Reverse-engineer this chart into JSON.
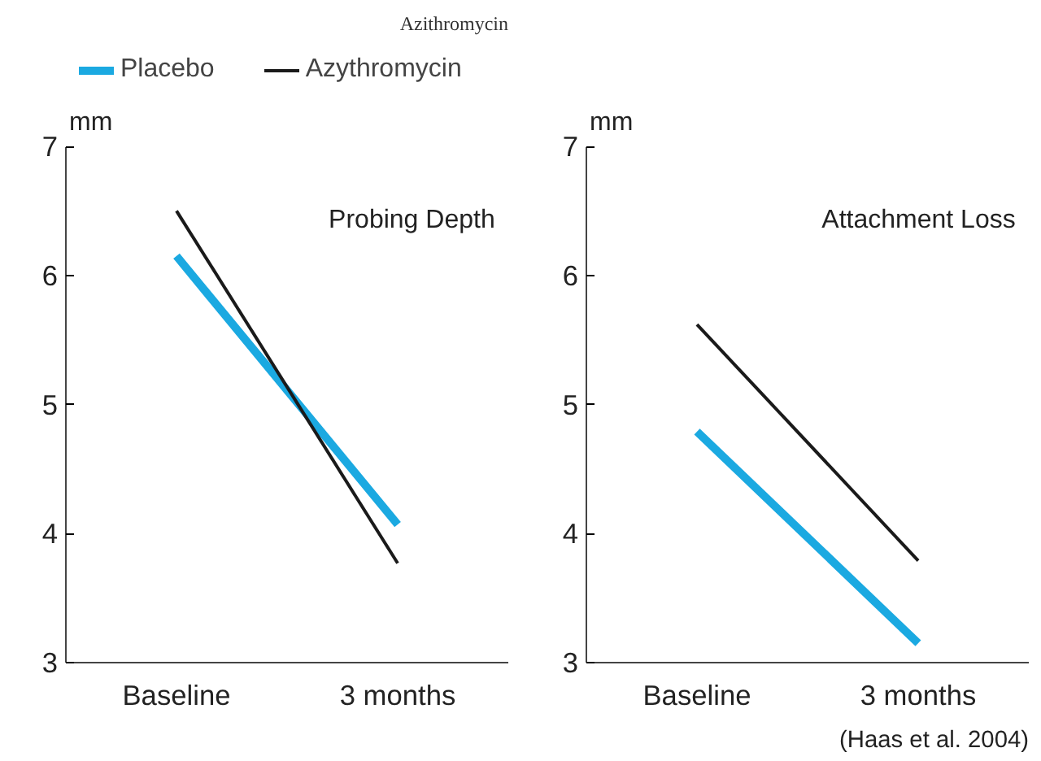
{
  "chart_data": [
    {
      "type": "line",
      "title": "Azithromycin",
      "ylabel": "mm",
      "categories": [
        "Baseline",
        "3 months"
      ],
      "ylim": [
        3,
        7
      ],
      "yticks": [
        3,
        4,
        5,
        6,
        7
      ],
      "legend": "top",
      "grid": false,
      "annotations": [
        "Probing Depth"
      ],
      "series": [
        {
          "name": "Placebo",
          "color": "#1ba9e1",
          "values": [
            6.15,
            4.07
          ]
        },
        {
          "name": "Azythromycin",
          "color": "#1a1a1a",
          "values": [
            6.5,
            3.77
          ]
        }
      ]
    },
    {
      "type": "line",
      "ylabel": "mm",
      "categories": [
        "Baseline",
        "3 months"
      ],
      "ylim": [
        3,
        7
      ],
      "yticks": [
        3,
        4,
        5,
        6,
        7
      ],
      "grid": false,
      "annotations": [
        "Attachment Loss",
        "(Haas et al. 2004)"
      ],
      "series": [
        {
          "color": "#1ba9e1",
          "values": [
            4.79,
            3.15
          ]
        },
        {
          "color": "#1a1a1a",
          "values": [
            5.62,
            3.79
          ]
        }
      ]
    }
  ]
}
